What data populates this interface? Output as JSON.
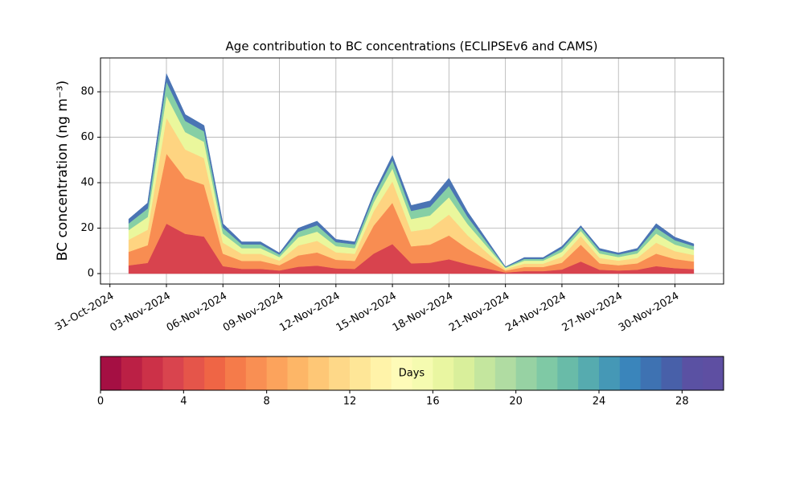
{
  "chart_data": {
    "type": "stacked_area",
    "title": "Age contribution to BC concentrations (ECLIPSEv6 and CAMS)",
    "y_label": "BC concentration (ng m⁻³)",
    "x": [
      "2024-11-01",
      "2024-11-02",
      "2024-11-03",
      "2024-11-04",
      "2024-11-05",
      "2024-11-06",
      "2024-11-07",
      "2024-11-08",
      "2024-11-09",
      "2024-11-10",
      "2024-11-11",
      "2024-11-12",
      "2024-11-13",
      "2024-11-14",
      "2024-11-15",
      "2024-11-16",
      "2024-11-17",
      "2024-11-18",
      "2024-11-19",
      "2024-11-20",
      "2024-11-21",
      "2024-11-22",
      "2024-11-23",
      "2024-11-24",
      "2024-11-25",
      "2024-11-26",
      "2024-11-27",
      "2024-11-28",
      "2024-11-29",
      "2024-11-30",
      "2024-12-01"
    ],
    "series": [
      {
        "color": "#d8434e",
        "values": [
          3.6,
          4.7,
          22,
          17.5,
          16.3,
          3.3,
          2.1,
          2.1,
          1.4,
          3,
          3.5,
          2.3,
          2.1,
          8.8,
          13,
          4.5,
          4.8,
          6.3,
          4.1,
          2.3,
          0.5,
          1.1,
          1.1,
          1.8,
          5.3,
          1.7,
          1.4,
          1.7,
          3.3,
          2.4,
          2
        ]
      },
      {
        "color": "#f88d52",
        "values": [
          6,
          7.8,
          30.8,
          24.5,
          22.8,
          5.5,
          3.5,
          3.5,
          2.3,
          5,
          5.8,
          3.8,
          3.5,
          12.3,
          18.2,
          7.5,
          8,
          10.5,
          6.8,
          3.8,
          0.8,
          1.8,
          1.8,
          3,
          7.4,
          2.8,
          2.3,
          2.8,
          5.5,
          4,
          3.3
        ]
      },
      {
        "color": "#fed481",
        "values": [
          5.3,
          6.8,
          15.8,
          12.6,
          11.7,
          4.8,
          3.1,
          3.1,
          2,
          4.4,
          5.1,
          3.3,
          3.1,
          6.3,
          9.4,
          6.6,
          7,
          9.2,
          5.9,
          3.3,
          0.7,
          1.5,
          1.5,
          2.6,
          3.8,
          2.4,
          2,
          2.4,
          4.8,
          3.5,
          2.9
        ]
      },
      {
        "color": "#eaf79c",
        "values": [
          4.3,
          5.6,
          9.7,
          7.7,
          7.2,
          4,
          2.5,
          2.5,
          1.6,
          3.6,
          4.1,
          2.7,
          2.5,
          3.9,
          5.7,
          5.4,
          5.8,
          7.6,
          4.9,
          2.7,
          0.5,
          1.3,
          1.3,
          2.2,
          2.3,
          2,
          1.6,
          2,
          4,
          2.9,
          2.3
        ]
      },
      {
        "color": "#86cfa5",
        "values": [
          2.9,
          3.7,
          6.2,
          4.9,
          4.6,
          2.6,
          1.7,
          1.7,
          1.1,
          2.4,
          2.8,
          1.8,
          1.7,
          2.5,
          3.6,
          3.6,
          3.8,
          5,
          3.2,
          1.8,
          0.3,
          0.8,
          0.8,
          1.4,
          1.5,
          1.3,
          1.1,
          1.3,
          2.6,
          1.9,
          1.6
        ]
      },
      {
        "color": "#4a74b4",
        "values": [
          1.9,
          2.5,
          3.5,
          2.8,
          2.6,
          1.8,
          1.1,
          1.1,
          0.7,
          1.6,
          1.8,
          1.2,
          1.1,
          1.4,
          2.1,
          2.4,
          2.6,
          3.4,
          2.2,
          1.2,
          0.2,
          0.6,
          0.6,
          1,
          0.8,
          0.9,
          0.7,
          0.9,
          1.8,
          1.3,
          1
        ]
      }
    ],
    "xlim": [
      "2024-10-30T12:00Z",
      "2024-12-02T14:00Z"
    ],
    "xticks": [
      {
        "value": "2024-10-31",
        "label": "31-Oct-2024"
      },
      {
        "value": "2024-11-03",
        "label": "03-Nov-2024"
      },
      {
        "value": "2024-11-06",
        "label": "06-Nov-2024"
      },
      {
        "value": "2024-11-09",
        "label": "09-Nov-2024"
      },
      {
        "value": "2024-11-12",
        "label": "12-Nov-2024"
      },
      {
        "value": "2024-11-15",
        "label": "15-Nov-2024"
      },
      {
        "value": "2024-11-18",
        "label": "18-Nov-2024"
      },
      {
        "value": "2024-11-21",
        "label": "21-Nov-2024"
      },
      {
        "value": "2024-11-24",
        "label": "24-Nov-2024"
      },
      {
        "value": "2024-11-27",
        "label": "27-Nov-2024"
      },
      {
        "value": "2024-11-30",
        "label": "30-Nov-2024"
      }
    ],
    "ylim": [
      -4.6,
      94.9
    ],
    "yticks": [
      0,
      20,
      40,
      60,
      80
    ],
    "grid": true,
    "colorbar": {
      "label": "Days",
      "lim": [
        0,
        30
      ],
      "ticks": [
        0,
        4,
        8,
        12,
        16,
        20,
        24,
        28
      ],
      "colors": [
        "#a50f43",
        "#bb2045",
        "#cc3148",
        "#d9444e",
        "#e5554a",
        "#ef6545",
        "#f57b4a",
        "#f98f53",
        "#fca35c",
        "#fdb667",
        "#fec776",
        "#fed888",
        "#fee697",
        "#fff3a9",
        "#fefbb8",
        "#f5fbb0",
        "#e9f6a1",
        "#d9ef9b",
        "#c4e69e",
        "#b0dca2",
        "#97d2a3",
        "#7fc9a5",
        "#69bba8",
        "#56abaf",
        "#4598b6",
        "#3a85bb",
        "#3e72b2",
        "#4860a9",
        "#5a51a3",
        "#5e4fa2"
      ]
    }
  }
}
